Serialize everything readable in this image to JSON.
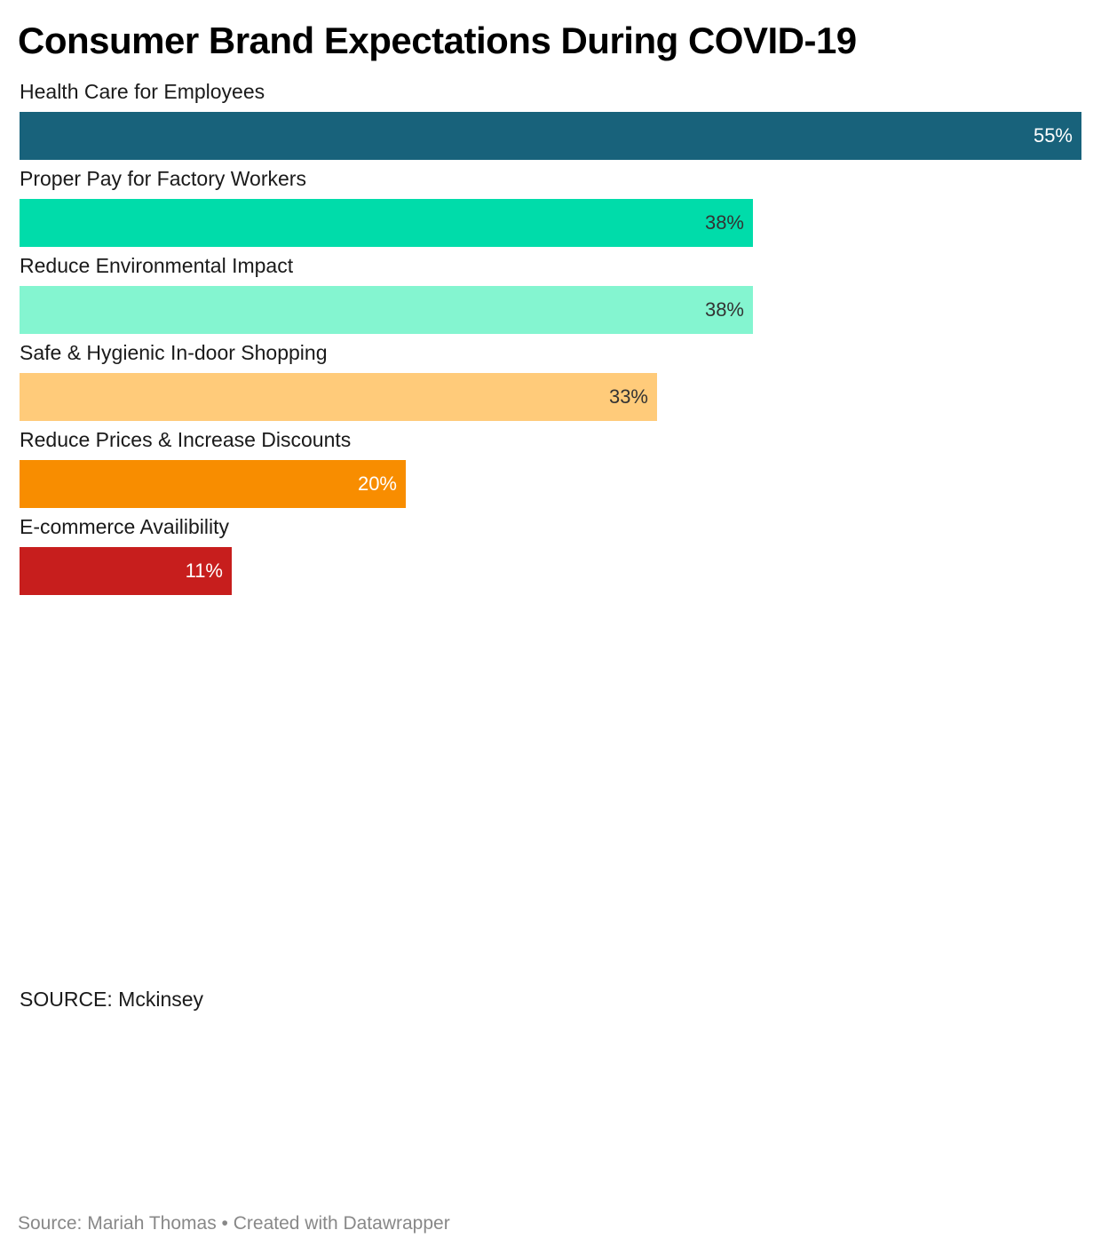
{
  "chart_data": {
    "type": "bar",
    "orientation": "horizontal",
    "title": "Consumer Brand Expectations During COVID-19",
    "categories": [
      "Health Care for Employees",
      "Proper Pay for Factory Workers",
      "Reduce Environmental Impact",
      "Safe & Hygienic In-door Shopping",
      "Reduce Prices & Increase Discounts",
      "E-commerce Availibility"
    ],
    "values": [
      55,
      38,
      38,
      33,
      20,
      11
    ],
    "value_labels": [
      "55%",
      "38%",
      "38%",
      "33%",
      "20%",
      "11%"
    ],
    "colors": [
      "#18627b",
      "#00dcaa",
      "#84f5d0",
      "#ffcb7a",
      "#f88d00",
      "#c71e1d"
    ],
    "label_colors": [
      "#ffffff",
      "#333333",
      "#333333",
      "#333333",
      "#ffffff",
      "#ffffff"
    ],
    "xlim": [
      0,
      55
    ],
    "grid": false,
    "xlabel": "",
    "ylabel": ""
  },
  "notes": {
    "source": "SOURCE: Mckinsey"
  },
  "footer": {
    "text": "Source: Mariah Thomas • Created with Datawrapper"
  }
}
